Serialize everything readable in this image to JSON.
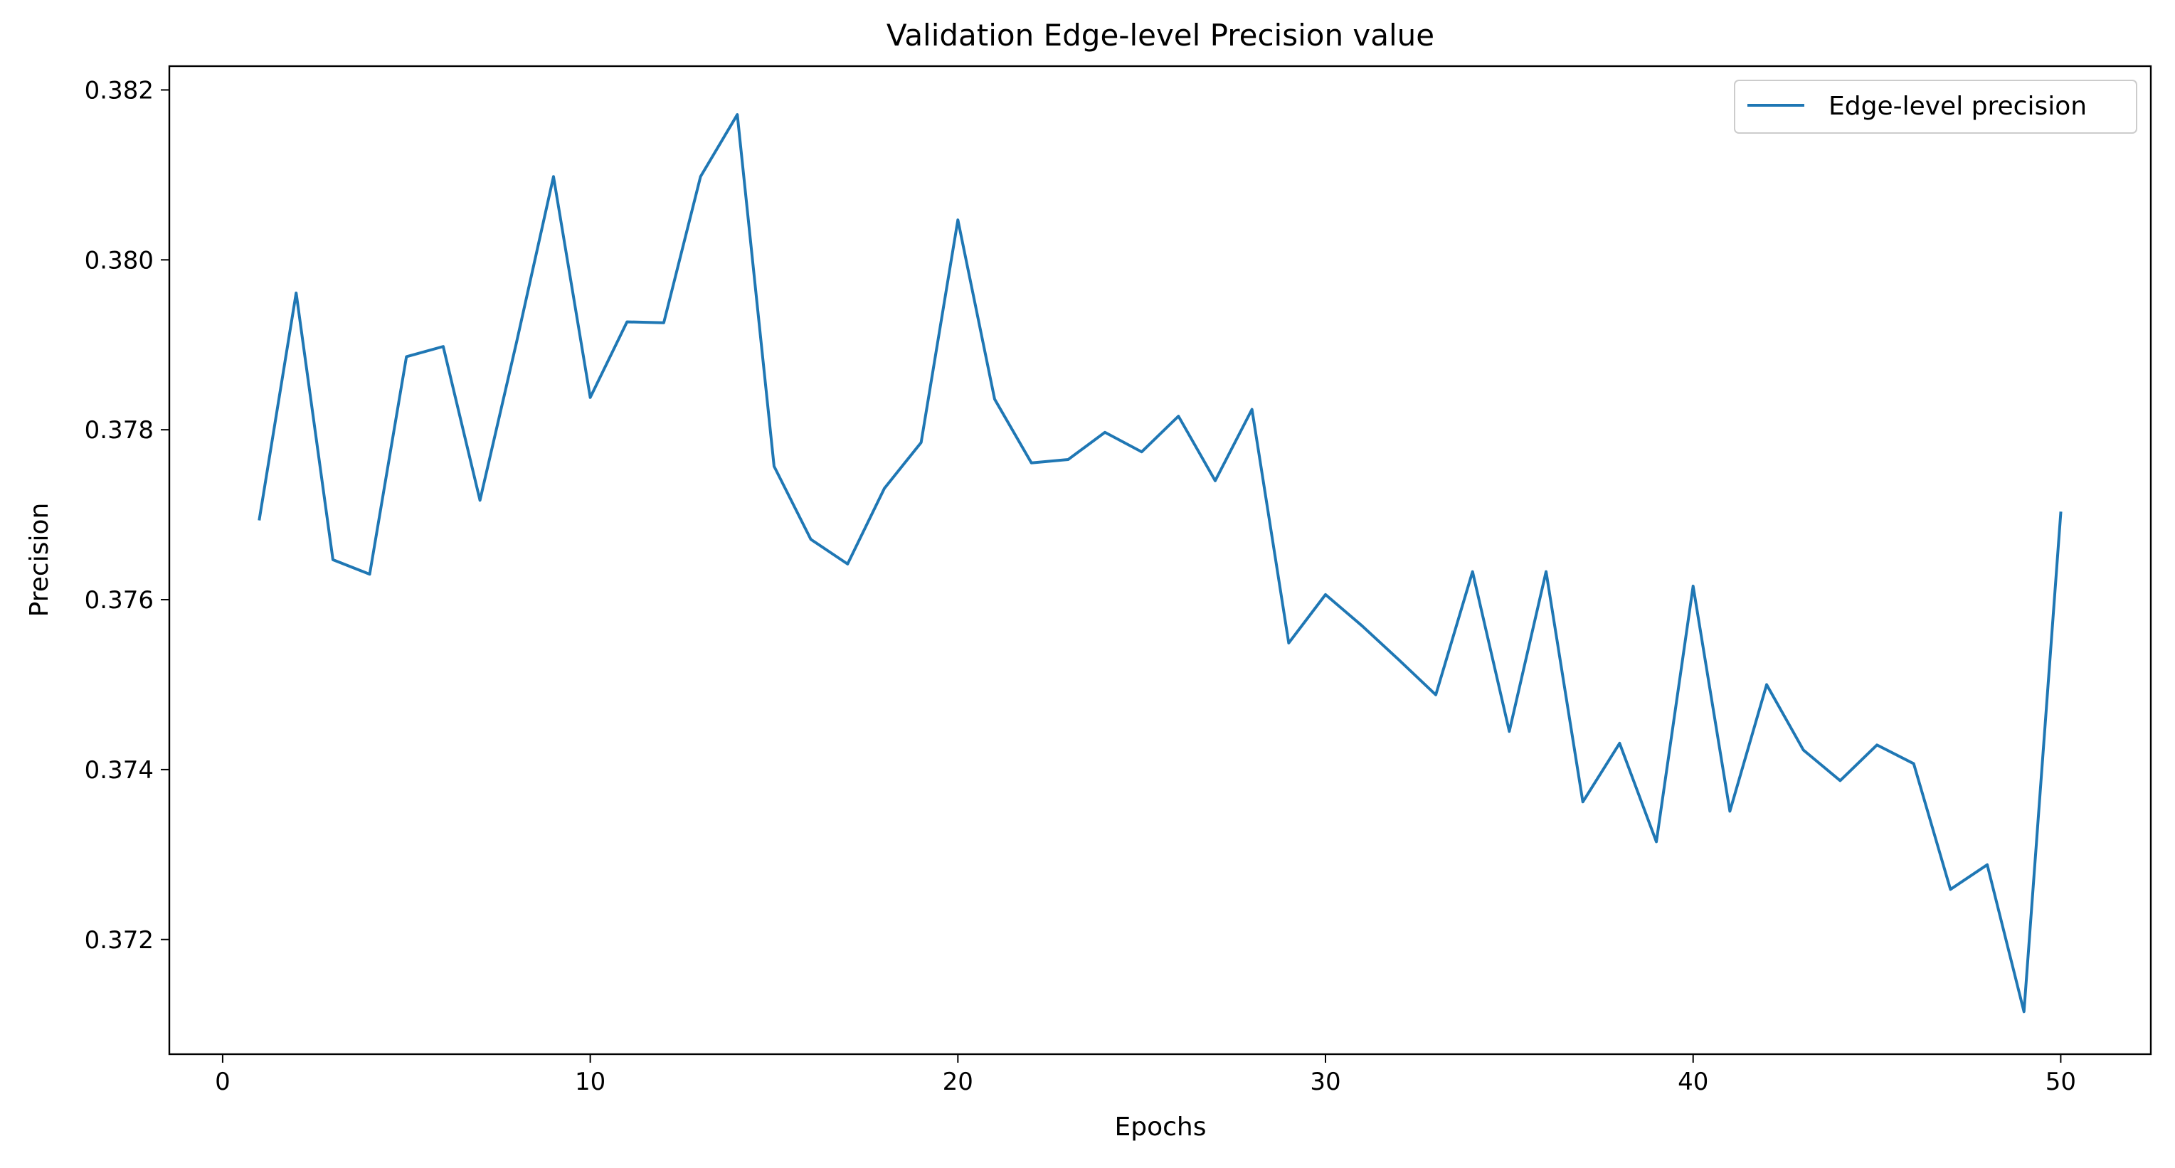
{
  "chart_data": {
    "type": "line",
    "title": "Validation Edge-level Precision value",
    "xlabel": "Epochs",
    "ylabel": "Precision",
    "xlim": [
      -1.45,
      52.45
    ],
    "ylim": [
      0.37065,
      0.38228
    ],
    "xticks": [
      0,
      10,
      20,
      30,
      40,
      50
    ],
    "xtick_labels": [
      "0",
      "10",
      "20",
      "30",
      "40",
      "50"
    ],
    "yticks": [
      0.372,
      0.374,
      0.376,
      0.378,
      0.38,
      0.382
    ],
    "ytick_labels": [
      "0.372",
      "0.374",
      "0.376",
      "0.378",
      "0.380",
      "0.382"
    ],
    "grid": false,
    "legend_position": "upper-right",
    "series": [
      {
        "name": "Edge-level precision",
        "color": "#1f77b4",
        "x": [
          1,
          2,
          3,
          4,
          5,
          6,
          7,
          8,
          9,
          10,
          11,
          12,
          13,
          14,
          15,
          16,
          17,
          18,
          19,
          20,
          21,
          22,
          23,
          24,
          25,
          26,
          27,
          28,
          29,
          30,
          31,
          32,
          33,
          34,
          35,
          36,
          37,
          38,
          39,
          40,
          41,
          42,
          43,
          44,
          45,
          46,
          47,
          48,
          49,
          50
        ],
        "y": [
          0.37695,
          0.37961,
          0.37647,
          0.3763,
          0.37886,
          0.37898,
          0.37717,
          0.37904,
          0.38098,
          0.37838,
          0.37927,
          0.37926,
          0.38098,
          0.38171,
          0.37757,
          0.37671,
          0.37642,
          0.37731,
          0.37785,
          0.38047,
          0.37836,
          0.37761,
          0.37765,
          0.37797,
          0.37774,
          0.37816,
          0.3774,
          0.37824,
          0.37549,
          0.37606,
          0.37569,
          0.37529,
          0.37488,
          0.37633,
          0.37445,
          0.37633,
          0.37362,
          0.37431,
          0.37315,
          0.37616,
          0.37351,
          0.375,
          0.37423,
          0.37387,
          0.37429,
          0.37407,
          0.37259,
          0.37288,
          0.37115,
          0.37702
        ]
      }
    ]
  }
}
